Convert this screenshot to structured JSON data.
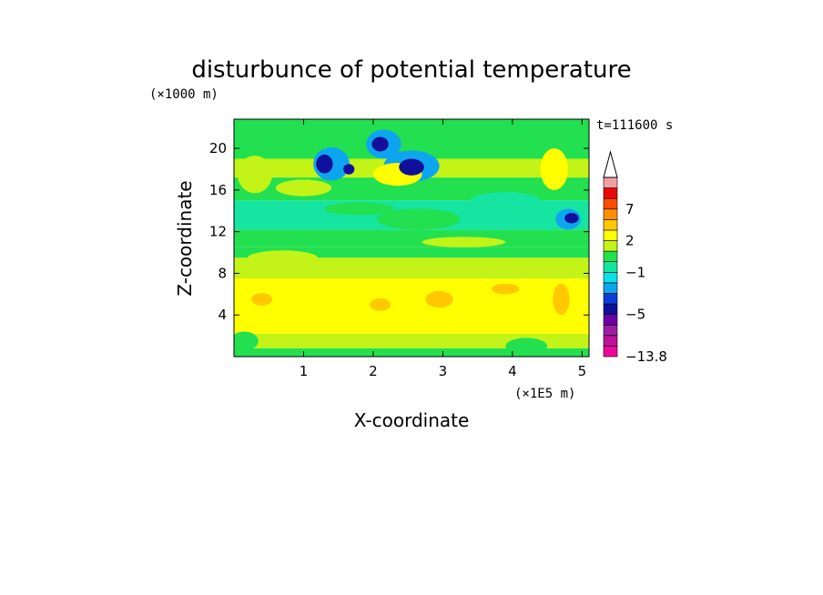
{
  "chart_data": {
    "type": "heatmap",
    "title": "disturbunce of potential temperature",
    "xlabel": "X-coordinate",
    "ylabel": "Z-coordinate",
    "x_unit": "(×1E5 m)",
    "y_unit": "(×1000 m)",
    "time_label": "t=111600 s",
    "xlim": [
      0,
      5.1
    ],
    "ylim": [
      0,
      22.8
    ],
    "x_ticks": [
      "1",
      "2",
      "3",
      "4",
      "5"
    ],
    "x_tick_values": [
      1,
      2,
      3,
      4,
      5
    ],
    "y_ticks": [
      "4",
      "8",
      "12",
      "16",
      "20"
    ],
    "y_tick_values": [
      4,
      8,
      12,
      16,
      20
    ],
    "colorbar": {
      "labels": [
        "7",
        "2",
        "−1",
        "−5",
        "−13.8"
      ],
      "label_levels": [
        7,
        2,
        -1,
        -5,
        -13.8
      ],
      "levels": [
        -13.8,
        -9,
        -7,
        -6,
        -5,
        -4,
        -3,
        -2,
        -1,
        0,
        1,
        2,
        3,
        5,
        7,
        9,
        13
      ],
      "colors": [
        "#f0069b",
        "#c0129b",
        "#9c1fa2",
        "#6b00a5",
        "#10109a",
        "#0c3ed6",
        "#0ea5f0",
        "#09e3e8",
        "#16e4a1",
        "#22e050",
        "#c3f317",
        "#ffff00",
        "#ffc800",
        "#ff8f00",
        "#ff4d00",
        "#e80a0a",
        "#f0a0a0"
      ],
      "extend": "max"
    },
    "bands": [
      {
        "z": [
          0,
          0.8
        ],
        "value": 0.5
      },
      {
        "z": [
          0.8,
          2.2
        ],
        "value": 1.5
      },
      {
        "z": [
          2.2,
          4.5
        ],
        "value": 2.5
      },
      {
        "z": [
          4.5,
          7.5
        ],
        "value": 2.5
      },
      {
        "z": [
          7.5,
          9.5
        ],
        "value": 1.5
      },
      {
        "z": [
          9.5,
          10.5
        ],
        "value": 0.5
      },
      {
        "z": [
          10.5,
          12.2
        ],
        "value": 0.5
      },
      {
        "z": [
          12.2,
          15.0
        ],
        "value": -0.5
      },
      {
        "z": [
          15.0,
          17.2
        ],
        "value": 0.5
      },
      {
        "z": [
          17.2,
          19.0
        ],
        "value": 1.5
      },
      {
        "z": [
          19.0,
          22.8
        ],
        "value": 0.5
      }
    ],
    "features": [
      {
        "x": 1.3,
        "z": 18.5,
        "rx": 0.12,
        "rz": 0.9,
        "value": -4.5
      },
      {
        "x": 1.4,
        "z": 18.5,
        "rx": 0.26,
        "rz": 1.6,
        "value": -2.5
      },
      {
        "x": 2.1,
        "z": 20.4,
        "rx": 0.12,
        "rz": 0.7,
        "value": -4.5
      },
      {
        "x": 2.15,
        "z": 20.4,
        "rx": 0.25,
        "rz": 1.4,
        "value": -2.5
      },
      {
        "x": 2.55,
        "z": 18.2,
        "rx": 0.18,
        "rz": 0.8,
        "value": -4.5
      },
      {
        "x": 2.55,
        "z": 18.3,
        "rx": 0.4,
        "rz": 1.5,
        "value": -2.5
      },
      {
        "x": 1.65,
        "z": 18.0,
        "rx": 0.08,
        "rz": 0.5,
        "value": -4.5
      },
      {
        "x": 2.35,
        "z": 17.5,
        "rx": 0.35,
        "rz": 1.1,
        "value": 2.5
      },
      {
        "x": 1.0,
        "z": 16.2,
        "rx": 0.4,
        "rz": 0.8,
        "value": 1.5
      },
      {
        "x": 0.3,
        "z": 17.5,
        "rx": 0.25,
        "rz": 1.8,
        "value": 1.5
      },
      {
        "x": 2.65,
        "z": 13.2,
        "rx": 0.6,
        "rz": 1.0,
        "value": 0.5
      },
      {
        "x": 1.8,
        "z": 14.2,
        "rx": 0.5,
        "rz": 0.6,
        "value": 0.5
      },
      {
        "x": 4.8,
        "z": 13.2,
        "rx": 0.18,
        "rz": 1.0,
        "value": -2.5
      },
      {
        "x": 4.85,
        "z": 13.3,
        "rx": 0.1,
        "rz": 0.5,
        "value": -4.5
      },
      {
        "x": 4.6,
        "z": 18.0,
        "rx": 0.2,
        "rz": 2.0,
        "value": 2.5
      },
      {
        "x": 3.9,
        "z": 15.0,
        "rx": 0.5,
        "rz": 0.8,
        "value": -0.5
      },
      {
        "x": 0.4,
        "z": 5.5,
        "rx": 0.15,
        "rz": 0.6,
        "value": 4
      },
      {
        "x": 2.95,
        "z": 5.5,
        "rx": 0.2,
        "rz": 0.8,
        "value": 4
      },
      {
        "x": 2.1,
        "z": 5.0,
        "rx": 0.15,
        "rz": 0.6,
        "value": 4
      },
      {
        "x": 3.9,
        "z": 6.5,
        "rx": 0.2,
        "rz": 0.5,
        "value": 4
      },
      {
        "x": 4.7,
        "z": 5.5,
        "rx": 0.12,
        "rz": 1.5,
        "value": 4
      },
      {
        "x": 0.15,
        "z": 1.5,
        "rx": 0.2,
        "rz": 0.9,
        "value": 0.5
      },
      {
        "x": 4.2,
        "z": 1.0,
        "rx": 0.3,
        "rz": 0.8,
        "value": 0.5
      },
      {
        "x": 0.7,
        "z": 9.5,
        "rx": 0.5,
        "rz": 0.7,
        "value": 1.5
      },
      {
        "x": 3.3,
        "z": 11.0,
        "rx": 0.6,
        "rz": 0.5,
        "value": 1.5
      }
    ]
  }
}
